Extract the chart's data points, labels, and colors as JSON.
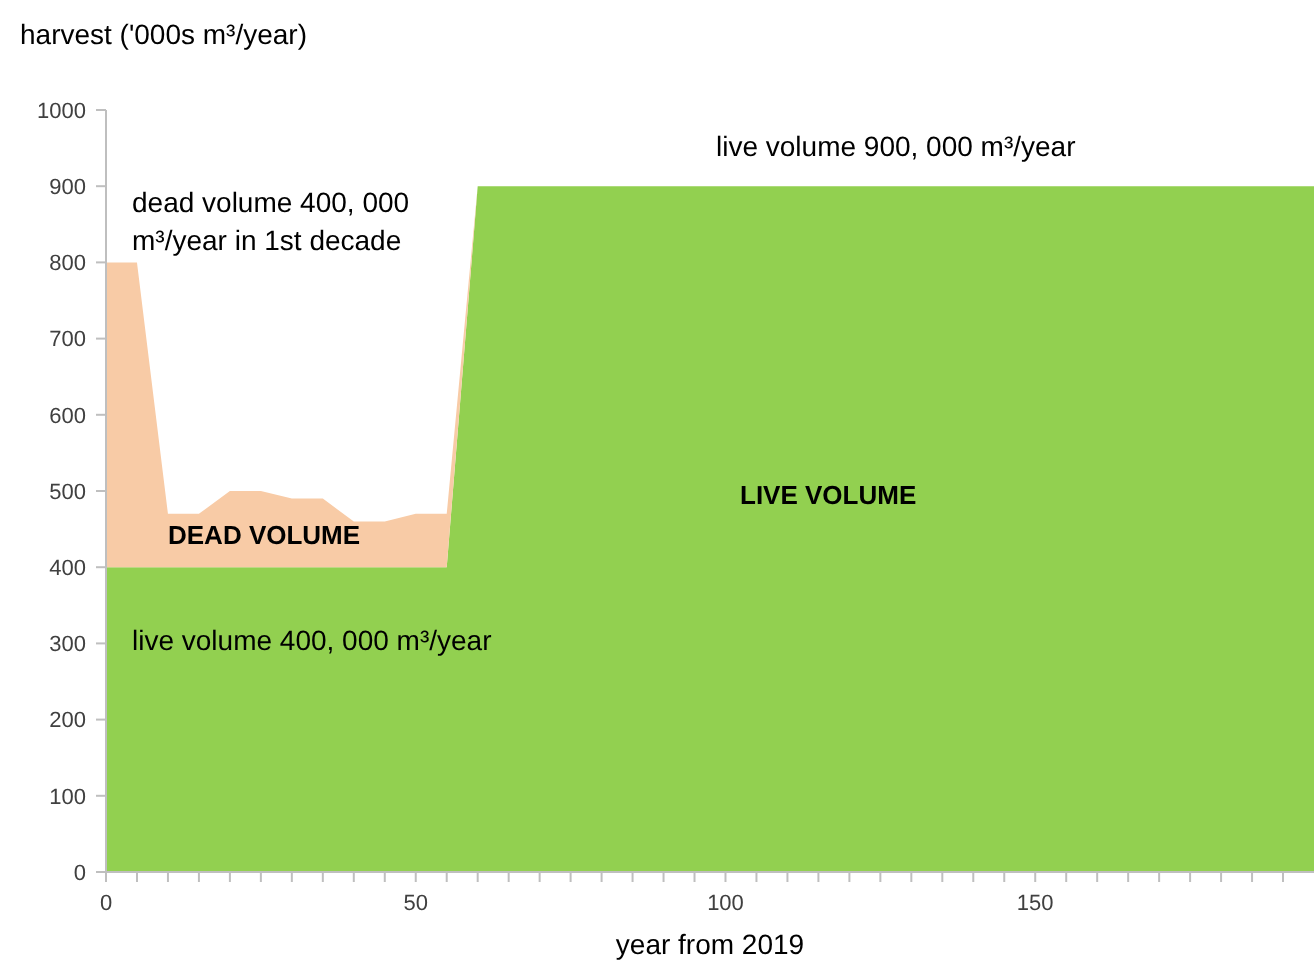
{
  "chart_data": {
    "type": "area",
    "stacked": true,
    "ylabel": "harvest ('000s m³/year)",
    "xlabel": "year from 2019",
    "x": [
      0,
      5,
      10,
      15,
      20,
      25,
      30,
      35,
      40,
      45,
      50,
      55,
      60,
      195
    ],
    "series": [
      {
        "color": "#92d050",
        "values": [
          400,
          400,
          400,
          400,
          400,
          400,
          400,
          400,
          400,
          400,
          400,
          400,
          900,
          900
        ]
      },
      {
        "color": "#f8cba6",
        "values": [
          400,
          400,
          70,
          70,
          100,
          100,
          90,
          90,
          60,
          60,
          70,
          70,
          0,
          0
        ]
      }
    ],
    "xlim": [
      0,
      195
    ],
    "ylim": [
      0,
      1000
    ],
    "yticks": [
      0,
      100,
      200,
      300,
      400,
      500,
      600,
      700,
      800,
      900,
      1000
    ],
    "xticks": [
      0,
      {
        "value": 5,
        "label": null
      },
      {
        "value": 10,
        "label": null
      },
      {
        "value": 15,
        "label": null
      },
      {
        "value": 20,
        "label": null
      },
      {
        "value": 25,
        "label": null
      },
      {
        "value": 30,
        "label": null
      },
      {
        "value": 35,
        "label": null
      },
      {
        "value": 40,
        "label": null
      },
      {
        "value": 45,
        "label": null
      },
      50,
      {
        "value": 55,
        "label": null
      },
      {
        "value": 60,
        "label": null
      },
      {
        "value": 65,
        "label": null
      },
      {
        "value": 70,
        "label": null
      },
      {
        "value": 75,
        "label": null
      },
      {
        "value": 80,
        "label": null
      },
      {
        "value": 85,
        "label": null
      },
      {
        "value": 90,
        "label": null
      },
      {
        "value": 95,
        "label": null
      },
      100,
      {
        "value": 105,
        "label": null
      },
      {
        "value": 110,
        "label": null
      },
      {
        "value": 115,
        "label": null
      },
      {
        "value": 120,
        "label": null
      },
      {
        "value": 125,
        "label": null
      },
      {
        "value": 130,
        "label": null
      },
      {
        "value": 135,
        "label": null
      },
      {
        "value": 140,
        "label": null
      },
      {
        "value": 145,
        "label": null
      },
      150,
      {
        "value": 155,
        "label": null
      },
      {
        "value": 160,
        "label": null
      },
      {
        "value": 165,
        "label": null
      },
      {
        "value": 170,
        "label": null
      },
      {
        "value": 175,
        "label": null
      },
      {
        "value": 180,
        "label": null
      },
      {
        "value": 185,
        "label": null
      },
      {
        "value": 190,
        "label": null
      }
    ],
    "annotations": [
      "dead volume 400, 000\nm³/year in 1st decade",
      "live volume 900, 000 m³/year",
      "DEAD VOLUME",
      "LIVE VOLUME",
      "live volume 400, 000 m³/year"
    ]
  }
}
